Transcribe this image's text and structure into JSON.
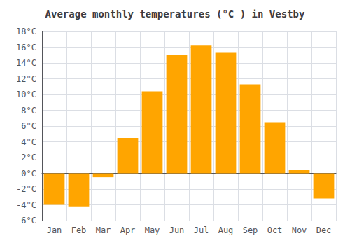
{
  "chart_data": {
    "type": "bar",
    "title": "Average monthly temperatures (°C ) in Vestby",
    "categories": [
      "Jan",
      "Feb",
      "Mar",
      "Apr",
      "May",
      "Jun",
      "Jul",
      "Aug",
      "Sep",
      "Oct",
      "Nov",
      "Dec"
    ],
    "values": [
      -4.0,
      -4.2,
      -0.5,
      4.5,
      10.4,
      15.0,
      16.2,
      15.3,
      11.3,
      6.5,
      0.4,
      -3.2
    ],
    "color": "#FFA500",
    "ylim": [
      -6,
      18
    ],
    "yticks": [
      {
        "value": -6,
        "label": "-6°C"
      },
      {
        "value": -4,
        "label": "-4°C"
      },
      {
        "value": -2,
        "label": "-2°C"
      },
      {
        "value": 0,
        "label": "0°C"
      },
      {
        "value": 2,
        "label": "2°C"
      },
      {
        "value": 4,
        "label": "4°C"
      },
      {
        "value": 6,
        "label": "6°C"
      },
      {
        "value": 8,
        "label": "8°C"
      },
      {
        "value": 10,
        "label": "10°C"
      },
      {
        "value": 12,
        "label": "12°C"
      },
      {
        "value": 14,
        "label": "14°C"
      },
      {
        "value": 16,
        "label": "16°C"
      },
      {
        "value": 18,
        "label": "18°C"
      }
    ],
    "grid": true
  }
}
